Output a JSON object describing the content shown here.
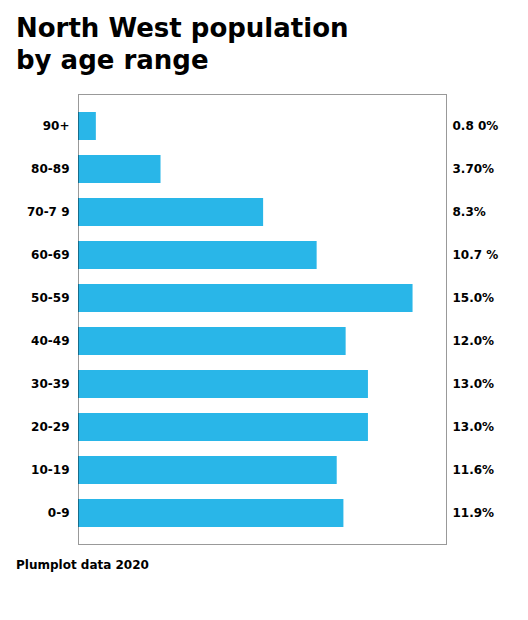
{
  "chart_data": {
    "type": "bar",
    "orientation": "horizontal",
    "title": "North West population",
    "subtitle": "by age range",
    "caption": "Plumplot data 2020",
    "categories": [
      "90+",
      "80-89",
      "70-7 9",
      "60-69",
      "50-59",
      "40-49",
      "30-39",
      "20-29",
      "10-19",
      "0-9"
    ],
    "values": [
      0.8,
      3.7,
      8.3,
      10.7,
      15.0,
      12.0,
      13.0,
      13.0,
      11.6,
      11.9
    ],
    "value_labels": [
      "0.8 0%",
      "3.70%",
      "8.3%",
      "10.7 %",
      "15.0%",
      "12.0%",
      "13.0%",
      "13.0%",
      "11.6%",
      "11.9%"
    ],
    "data_labels": true,
    "color": "#29b6e8",
    "xlim": [
      0,
      16.5
    ],
    "tick_labels": "y",
    "grid": false
  }
}
